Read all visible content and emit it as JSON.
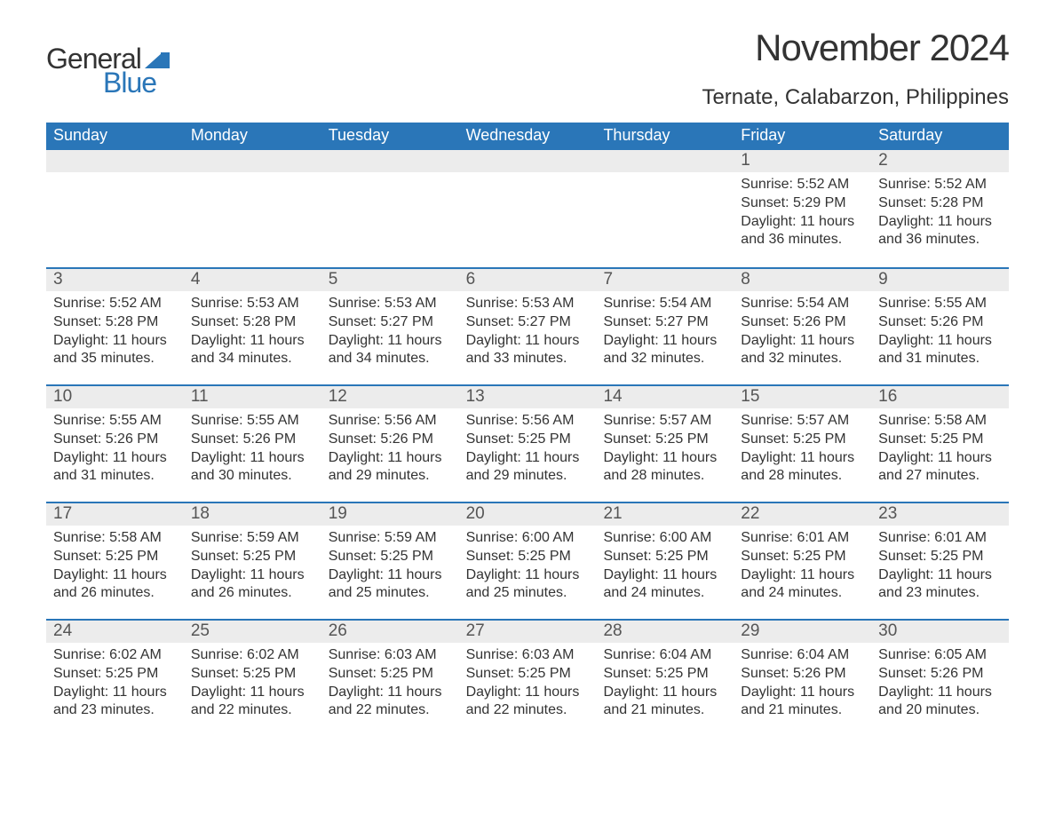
{
  "logo": {
    "part1": "General",
    "part2": "Blue"
  },
  "title": "November 2024",
  "location": "Ternate, Calabarzon, Philippines",
  "colors": {
    "header_bg": "#2a76b8",
    "header_text": "#ffffff",
    "daynum_bg": "#ececec",
    "daynum_text": "#555555",
    "body_text": "#333333",
    "logo_blue": "#2a76b8",
    "background": "#ffffff"
  },
  "day_names": [
    "Sunday",
    "Monday",
    "Tuesday",
    "Wednesday",
    "Thursday",
    "Friday",
    "Saturday"
  ],
  "weeks": [
    [
      null,
      null,
      null,
      null,
      null,
      {
        "day": "1",
        "sunrise": "Sunrise: 5:52 AM",
        "sunset": "Sunset: 5:29 PM",
        "daylight": "Daylight: 11 hours and 36 minutes."
      },
      {
        "day": "2",
        "sunrise": "Sunrise: 5:52 AM",
        "sunset": "Sunset: 5:28 PM",
        "daylight": "Daylight: 11 hours and 36 minutes."
      }
    ],
    [
      {
        "day": "3",
        "sunrise": "Sunrise: 5:52 AM",
        "sunset": "Sunset: 5:28 PM",
        "daylight": "Daylight: 11 hours and 35 minutes."
      },
      {
        "day": "4",
        "sunrise": "Sunrise: 5:53 AM",
        "sunset": "Sunset: 5:28 PM",
        "daylight": "Daylight: 11 hours and 34 minutes."
      },
      {
        "day": "5",
        "sunrise": "Sunrise: 5:53 AM",
        "sunset": "Sunset: 5:27 PM",
        "daylight": "Daylight: 11 hours and 34 minutes."
      },
      {
        "day": "6",
        "sunrise": "Sunrise: 5:53 AM",
        "sunset": "Sunset: 5:27 PM",
        "daylight": "Daylight: 11 hours and 33 minutes."
      },
      {
        "day": "7",
        "sunrise": "Sunrise: 5:54 AM",
        "sunset": "Sunset: 5:27 PM",
        "daylight": "Daylight: 11 hours and 32 minutes."
      },
      {
        "day": "8",
        "sunrise": "Sunrise: 5:54 AM",
        "sunset": "Sunset: 5:26 PM",
        "daylight": "Daylight: 11 hours and 32 minutes."
      },
      {
        "day": "9",
        "sunrise": "Sunrise: 5:55 AM",
        "sunset": "Sunset: 5:26 PM",
        "daylight": "Daylight: 11 hours and 31 minutes."
      }
    ],
    [
      {
        "day": "10",
        "sunrise": "Sunrise: 5:55 AM",
        "sunset": "Sunset: 5:26 PM",
        "daylight": "Daylight: 11 hours and 31 minutes."
      },
      {
        "day": "11",
        "sunrise": "Sunrise: 5:55 AM",
        "sunset": "Sunset: 5:26 PM",
        "daylight": "Daylight: 11 hours and 30 minutes."
      },
      {
        "day": "12",
        "sunrise": "Sunrise: 5:56 AM",
        "sunset": "Sunset: 5:26 PM",
        "daylight": "Daylight: 11 hours and 29 minutes."
      },
      {
        "day": "13",
        "sunrise": "Sunrise: 5:56 AM",
        "sunset": "Sunset: 5:25 PM",
        "daylight": "Daylight: 11 hours and 29 minutes."
      },
      {
        "day": "14",
        "sunrise": "Sunrise: 5:57 AM",
        "sunset": "Sunset: 5:25 PM",
        "daylight": "Daylight: 11 hours and 28 minutes."
      },
      {
        "day": "15",
        "sunrise": "Sunrise: 5:57 AM",
        "sunset": "Sunset: 5:25 PM",
        "daylight": "Daylight: 11 hours and 28 minutes."
      },
      {
        "day": "16",
        "sunrise": "Sunrise: 5:58 AM",
        "sunset": "Sunset: 5:25 PM",
        "daylight": "Daylight: 11 hours and 27 minutes."
      }
    ],
    [
      {
        "day": "17",
        "sunrise": "Sunrise: 5:58 AM",
        "sunset": "Sunset: 5:25 PM",
        "daylight": "Daylight: 11 hours and 26 minutes."
      },
      {
        "day": "18",
        "sunrise": "Sunrise: 5:59 AM",
        "sunset": "Sunset: 5:25 PM",
        "daylight": "Daylight: 11 hours and 26 minutes."
      },
      {
        "day": "19",
        "sunrise": "Sunrise: 5:59 AM",
        "sunset": "Sunset: 5:25 PM",
        "daylight": "Daylight: 11 hours and 25 minutes."
      },
      {
        "day": "20",
        "sunrise": "Sunrise: 6:00 AM",
        "sunset": "Sunset: 5:25 PM",
        "daylight": "Daylight: 11 hours and 25 minutes."
      },
      {
        "day": "21",
        "sunrise": "Sunrise: 6:00 AM",
        "sunset": "Sunset: 5:25 PM",
        "daylight": "Daylight: 11 hours and 24 minutes."
      },
      {
        "day": "22",
        "sunrise": "Sunrise: 6:01 AM",
        "sunset": "Sunset: 5:25 PM",
        "daylight": "Daylight: 11 hours and 24 minutes."
      },
      {
        "day": "23",
        "sunrise": "Sunrise: 6:01 AM",
        "sunset": "Sunset: 5:25 PM",
        "daylight": "Daylight: 11 hours and 23 minutes."
      }
    ],
    [
      {
        "day": "24",
        "sunrise": "Sunrise: 6:02 AM",
        "sunset": "Sunset: 5:25 PM",
        "daylight": "Daylight: 11 hours and 23 minutes."
      },
      {
        "day": "25",
        "sunrise": "Sunrise: 6:02 AM",
        "sunset": "Sunset: 5:25 PM",
        "daylight": "Daylight: 11 hours and 22 minutes."
      },
      {
        "day": "26",
        "sunrise": "Sunrise: 6:03 AM",
        "sunset": "Sunset: 5:25 PM",
        "daylight": "Daylight: 11 hours and 22 minutes."
      },
      {
        "day": "27",
        "sunrise": "Sunrise: 6:03 AM",
        "sunset": "Sunset: 5:25 PM",
        "daylight": "Daylight: 11 hours and 22 minutes."
      },
      {
        "day": "28",
        "sunrise": "Sunrise: 6:04 AM",
        "sunset": "Sunset: 5:25 PM",
        "daylight": "Daylight: 11 hours and 21 minutes."
      },
      {
        "day": "29",
        "sunrise": "Sunrise: 6:04 AM",
        "sunset": "Sunset: 5:26 PM",
        "daylight": "Daylight: 11 hours and 21 minutes."
      },
      {
        "day": "30",
        "sunrise": "Sunrise: 6:05 AM",
        "sunset": "Sunset: 5:26 PM",
        "daylight": "Daylight: 11 hours and 20 minutes."
      }
    ]
  ]
}
